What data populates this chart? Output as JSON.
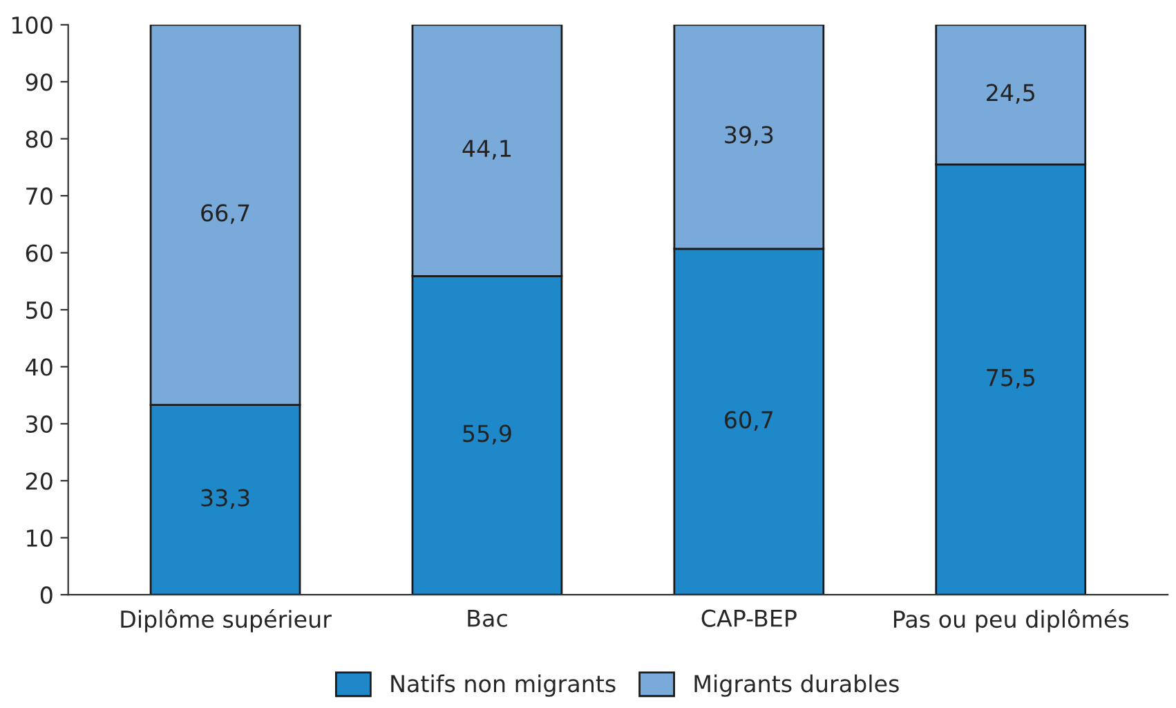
{
  "chart_data": {
    "type": "bar",
    "stacked": true,
    "categories": [
      "Diplôme supérieur",
      "Bac",
      "CAP-BEP",
      "Pas ou peu diplômés"
    ],
    "series": [
      {
        "name": "Natifs non migrants",
        "color": "#1f88c9",
        "values": [
          33.3,
          55.9,
          60.7,
          75.5
        ],
        "value_labels": [
          "33,3",
          "55,9",
          "60,7",
          "75,5"
        ]
      },
      {
        "name": "Migrants durables",
        "color": "#7aaad9",
        "values": [
          66.7,
          44.1,
          39.3,
          24.5
        ],
        "value_labels": [
          "66,7",
          "44,1",
          "39,3",
          "24,5"
        ]
      }
    ],
    "ylim": [
      0,
      100
    ],
    "yticks": [
      0,
      10,
      20,
      30,
      40,
      50,
      60,
      70,
      80,
      90,
      100
    ],
    "grid": false,
    "legend": "bottom"
  }
}
